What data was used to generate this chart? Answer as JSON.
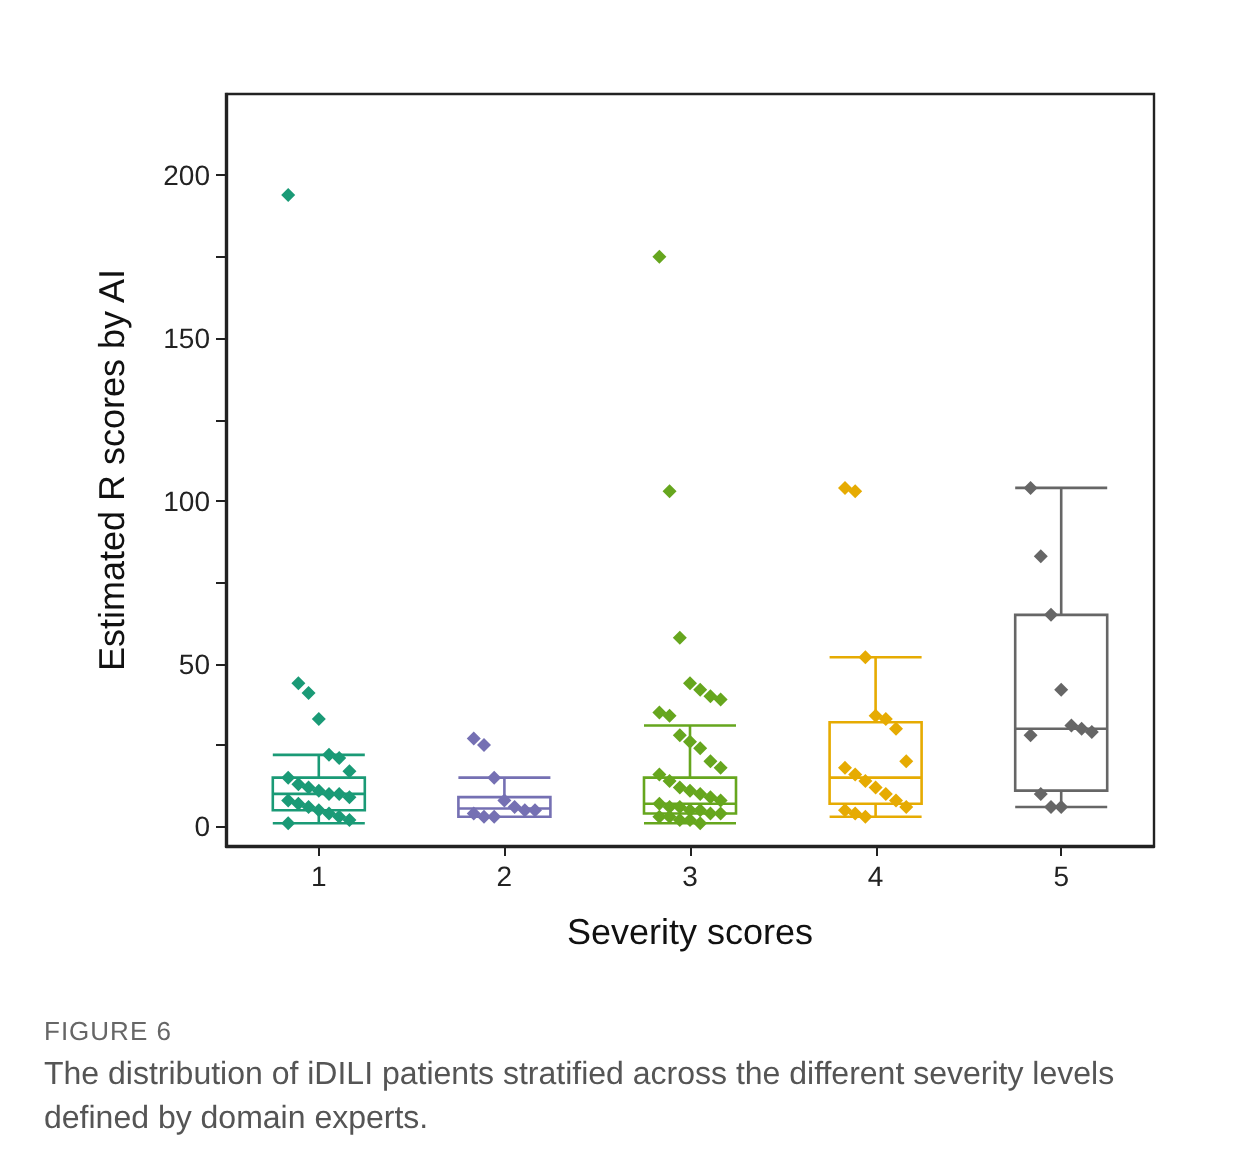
{
  "chart_data": {
    "type": "box",
    "xlabel": "Severity scores",
    "ylabel": "Estimated R scores by AI",
    "categories": [
      "1",
      "2",
      "3",
      "4",
      "5"
    ],
    "colors": [
      "#1a9a76",
      "#7570b3",
      "#66a61e",
      "#e6ab02",
      "#666666"
    ],
    "boxes": [
      {
        "low": 1,
        "q1": 5,
        "median": 10,
        "q3": 15,
        "high": 22
      },
      {
        "low": 3,
        "q1": 3,
        "median": 5.5,
        "q3": 9,
        "high": 15
      },
      {
        "low": 1,
        "q1": 4,
        "median": 7,
        "q3": 15,
        "high": 31
      },
      {
        "low": 3,
        "q1": 7,
        "median": 15,
        "q3": 32,
        "high": 52
      },
      {
        "low": 6,
        "q1": 11,
        "median": 30,
        "q3": 65,
        "high": 104
      }
    ],
    "series": [
      {
        "type": "scatter",
        "color": "#1a9a76",
        "x": [
          "1",
          "1",
          "1",
          "1",
          "1",
          "1",
          "1",
          "1",
          "1",
          "1",
          "1",
          "1",
          "1",
          "1",
          "1",
          "1",
          "1",
          "1",
          "1",
          "1",
          "1",
          "1"
        ],
        "values": [
          194,
          44,
          41,
          33,
          22,
          21,
          17,
          15,
          13,
          12,
          11,
          10,
          10,
          9,
          8,
          7,
          6,
          5,
          4,
          3,
          2,
          1
        ]
      },
      {
        "type": "scatter",
        "color": "#7570b3",
        "x": [
          "2",
          "2",
          "2",
          "2",
          "2",
          "2",
          "2",
          "2",
          "2",
          "2"
        ],
        "values": [
          27,
          25,
          15,
          8,
          6,
          5,
          5,
          4,
          3,
          3
        ]
      },
      {
        "type": "scatter",
        "color": "#66a61e",
        "x": [
          "3",
          "3",
          "3",
          "3",
          "3",
          "3",
          "3",
          "3",
          "3",
          "3",
          "3",
          "3",
          "3",
          "3",
          "3",
          "3",
          "3",
          "3",
          "3",
          "3",
          "3",
          "3",
          "3",
          "3",
          "3",
          "3",
          "3",
          "3",
          "3",
          "3",
          "3",
          "3",
          "3"
        ],
        "values": [
          175,
          103,
          58,
          44,
          42,
          40,
          39,
          35,
          34,
          28,
          26,
          24,
          20,
          18,
          16,
          14,
          12,
          11,
          10,
          9,
          8,
          7,
          6,
          6,
          5,
          5,
          4,
          4,
          3,
          3,
          2,
          2,
          1
        ]
      },
      {
        "type": "scatter",
        "color": "#e6ab02",
        "x": [
          "4",
          "4",
          "4",
          "4",
          "4",
          "4",
          "4",
          "4",
          "4",
          "4",
          "4",
          "4",
          "4",
          "4",
          "4",
          "4",
          "4"
        ],
        "values": [
          104,
          103,
          52,
          34,
          33,
          30,
          20,
          18,
          16,
          14,
          12,
          10,
          8,
          6,
          5,
          4,
          3
        ]
      },
      {
        "type": "scatter",
        "color": "#666666",
        "x": [
          "5",
          "5",
          "5",
          "5",
          "5",
          "5",
          "5",
          "5",
          "5",
          "5",
          "5"
        ],
        "values": [
          104,
          83,
          65,
          42,
          31,
          30,
          29,
          28,
          10,
          6,
          6
        ]
      }
    ],
    "marker": "diamond",
    "ylim": [
      -6,
      225
    ],
    "yticks": [
      0,
      {
        "value": 25,
        "label": null
      },
      50,
      {
        "value": 75,
        "label": null
      },
      100,
      {
        "value": 125,
        "label": null
      },
      150,
      {
        "value": 175,
        "label": null
      },
      200
    ],
    "grid": false,
    "annotations": [
      "FIGURE 6",
      "The distribution of iDILI patients stratified across the different severity levels defined by domain experts."
    ]
  }
}
